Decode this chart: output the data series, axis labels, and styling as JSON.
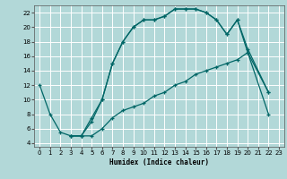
{
  "xlabel": "Humidex (Indice chaleur)",
  "background_color": "#b2d8d8",
  "grid_color": "#ffffff",
  "line_color": "#006666",
  "xlim": [
    -0.5,
    23.5
  ],
  "ylim": [
    3.5,
    23
  ],
  "yticks": [
    4,
    6,
    8,
    10,
    12,
    14,
    16,
    18,
    20,
    22
  ],
  "xticks": [
    0,
    1,
    2,
    3,
    4,
    5,
    6,
    7,
    8,
    9,
    10,
    11,
    12,
    13,
    14,
    15,
    16,
    17,
    18,
    19,
    20,
    21,
    22,
    23
  ],
  "series1_x": [
    0,
    1,
    2,
    3,
    4,
    5,
    6,
    7,
    8,
    9,
    10,
    11,
    12,
    13,
    14,
    15,
    16,
    17,
    18,
    19,
    20,
    22
  ],
  "series1_y": [
    12,
    8,
    5.5,
    5,
    5,
    7.5,
    10,
    15,
    18,
    20,
    21,
    21,
    21.5,
    22.5,
    22.5,
    22.5,
    22,
    21,
    19,
    21,
    17,
    11
  ],
  "series2_x": [
    3,
    4,
    5,
    6,
    7,
    8,
    9,
    10,
    11,
    12,
    13,
    14,
    15,
    16,
    17,
    18,
    19,
    20,
    22
  ],
  "series2_y": [
    5,
    5,
    7,
    10,
    15,
    18,
    20,
    21,
    21,
    21.5,
    22.5,
    22.5,
    22.5,
    22,
    21,
    19,
    21,
    16.5,
    11
  ],
  "series3_x": [
    3,
    4,
    5,
    6,
    7,
    8,
    9,
    10,
    11,
    12,
    13,
    14,
    15,
    16,
    17,
    18,
    19,
    20,
    22
  ],
  "series3_y": [
    5,
    5,
    5,
    6,
    7.5,
    8.5,
    9,
    9.5,
    10.5,
    11,
    12,
    12.5,
    13.5,
    14,
    14.5,
    15,
    15.5,
    16.5,
    8
  ]
}
